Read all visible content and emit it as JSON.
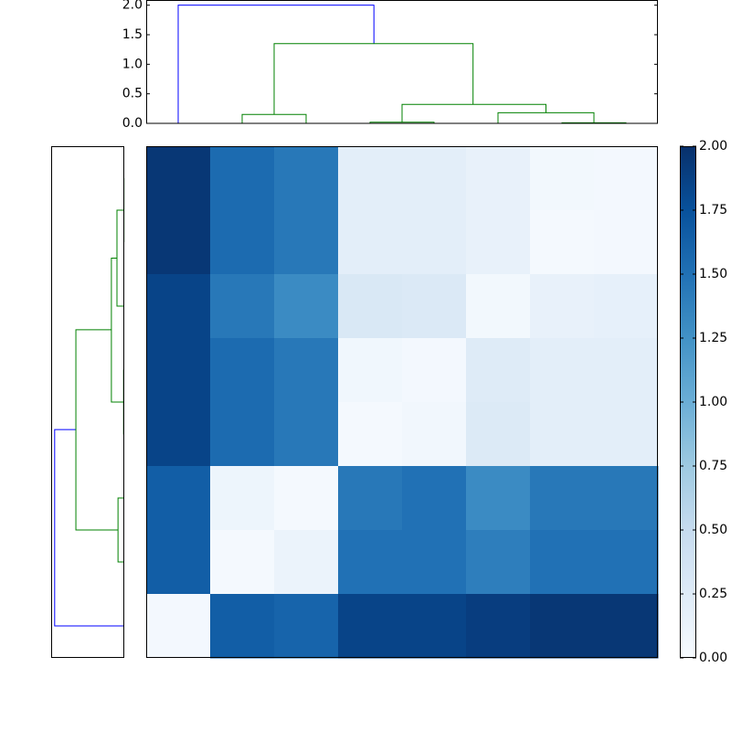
{
  "chart_data": {
    "type": "heatmap",
    "z": [
      [
        1.95,
        1.55,
        1.45,
        0.2,
        0.2,
        0.15,
        0.05,
        0.04
      ],
      [
        1.95,
        1.55,
        1.45,
        0.2,
        0.2,
        0.15,
        0.03,
        0.04
      ],
      [
        1.85,
        1.45,
        1.3,
        0.3,
        0.28,
        0.05,
        0.15,
        0.17
      ],
      [
        1.85,
        1.55,
        1.45,
        0.07,
        0.04,
        0.25,
        0.2,
        0.2
      ],
      [
        1.85,
        1.55,
        1.45,
        0.03,
        0.06,
        0.27,
        0.2,
        0.2
      ],
      [
        1.65,
        0.1,
        0.03,
        1.45,
        1.5,
        1.3,
        1.45,
        1.45
      ],
      [
        1.65,
        0.03,
        0.12,
        1.5,
        1.5,
        1.4,
        1.5,
        1.5
      ],
      [
        0.04,
        1.65,
        1.6,
        1.85,
        1.85,
        1.9,
        1.95,
        1.95
      ]
    ],
    "clim": [
      0,
      2
    ],
    "colormap": [
      "#f7fbff",
      "#deebf7",
      "#c6dbef",
      "#9ecae1",
      "#6baed6",
      "#4292c6",
      "#2171b5",
      "#08519c",
      "#08306b"
    ],
    "colorbar_ticks": [
      {
        "value": 0,
        "label": "0.00"
      },
      {
        "value": 0.25,
        "label": "0.25"
      },
      {
        "value": 0.5,
        "label": "0.50"
      },
      {
        "value": 0.75,
        "label": "0.75"
      },
      {
        "value": 1,
        "label": "1.00"
      },
      {
        "value": 1.25,
        "label": "1.25"
      },
      {
        "value": 1.5,
        "label": "1.50"
      },
      {
        "value": 1.75,
        "label": "1.75"
      },
      {
        "value": 2,
        "label": "2.00"
      }
    ],
    "dendrogram_top": {
      "xlim": [
        0,
        80
      ],
      "ylim": [
        0,
        2.08
      ],
      "yticks": [
        {
          "value": 0,
          "label": "0.0"
        },
        {
          "value": 0.5,
          "label": "0.5"
        },
        {
          "value": 1,
          "label": "1.0"
        },
        {
          "value": 1.5,
          "label": "1.5"
        },
        {
          "value": 2,
          "label": "2.0"
        }
      ],
      "links": [
        {
          "color": "#0000ff",
          "x": [
            5,
            5,
            35.6,
            35.6
          ],
          "y": [
            0,
            2.0,
            2.0,
            1.35
          ]
        },
        {
          "color": "#008000",
          "x": [
            20,
            20,
            51.1,
            51.1
          ],
          "y": [
            0.15,
            1.35,
            1.35,
            0.32
          ]
        },
        {
          "color": "#008000",
          "x": [
            15,
            15,
            25,
            25
          ],
          "y": [
            0,
            0.15,
            0.15,
            0
          ]
        },
        {
          "color": "#008000",
          "x": [
            40,
            40,
            62.5,
            62.5
          ],
          "y": [
            0.02,
            0.32,
            0.32,
            0.18
          ]
        },
        {
          "color": "#008000",
          "x": [
            35,
            35,
            45,
            45
          ],
          "y": [
            0,
            0.02,
            0.02,
            0
          ]
        },
        {
          "color": "#008000",
          "x": [
            55,
            55,
            70,
            70
          ],
          "y": [
            0,
            0.18,
            0.18,
            0.01
          ]
        },
        {
          "color": "#008000",
          "x": [
            65,
            65,
            75,
            75
          ],
          "y": [
            0,
            0.01,
            0.01,
            0
          ]
        }
      ]
    },
    "dendrogram_left": {
      "xlim": [
        2.1,
        0
      ],
      "ylim": [
        0,
        80
      ],
      "links": [
        {
          "color": "#0000ff",
          "pos": [
            5,
            5,
            35.7,
            35.7
          ],
          "dist": [
            0,
            2.0,
            2.0,
            1.39
          ]
        },
        {
          "color": "#008000",
          "pos": [
            20,
            20,
            51.3,
            51.3
          ],
          "dist": [
            0.18,
            1.39,
            1.39,
            0.37
          ]
        },
        {
          "color": "#008000",
          "pos": [
            15,
            15,
            25,
            25
          ],
          "dist": [
            0,
            0.18,
            0.18,
            0
          ]
        },
        {
          "color": "#008000",
          "pos": [
            40,
            40,
            62.5,
            62.5
          ],
          "dist": [
            0.02,
            0.37,
            0.37,
            0.21
          ]
        },
        {
          "color": "#008000",
          "pos": [
            35,
            35,
            45,
            45
          ],
          "dist": [
            0,
            0.02,
            0.02,
            0
          ]
        },
        {
          "color": "#008000",
          "pos": [
            55,
            55,
            70,
            70
          ],
          "dist": [
            0,
            0.21,
            0.21,
            0.01
          ]
        },
        {
          "color": "#008000",
          "pos": [
            65,
            65,
            75,
            75
          ],
          "dist": [
            0,
            0.01,
            0.01,
            0
          ]
        }
      ]
    }
  }
}
